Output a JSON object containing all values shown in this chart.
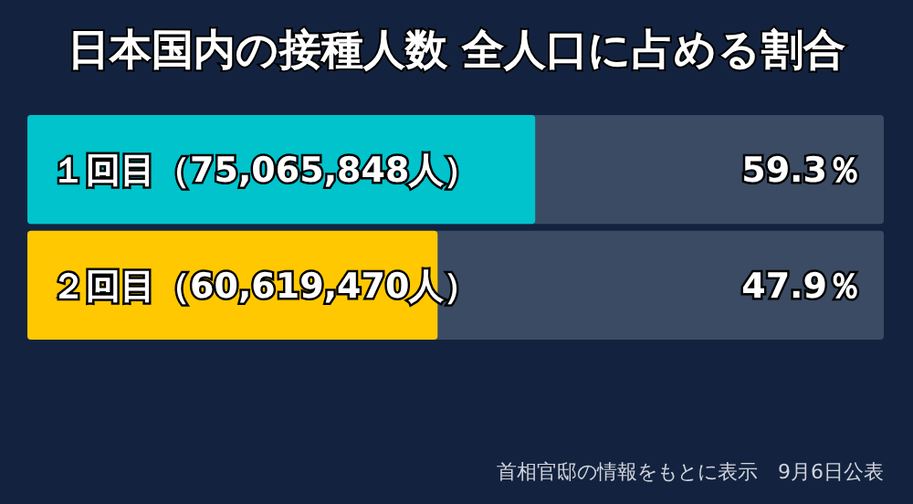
{
  "chart_data": {
    "type": "bar",
    "orientation": "horizontal",
    "title": "日本国内の接種人数 全人口に占める割合",
    "categories": [
      "１回目（75,065,848人）",
      "２回目（60,619,470人）"
    ],
    "values": [
      59.3,
      47.9
    ],
    "colors": [
      "#00c3cc",
      "#ffc800"
    ],
    "value_labels": [
      "59.3％",
      "47.9％"
    ],
    "xlim": [
      0,
      100
    ],
    "tick_labels": false,
    "grid": false,
    "annotations": [
      "首相官邸の情報をもとに表示　9月6日公表"
    ]
  }
}
